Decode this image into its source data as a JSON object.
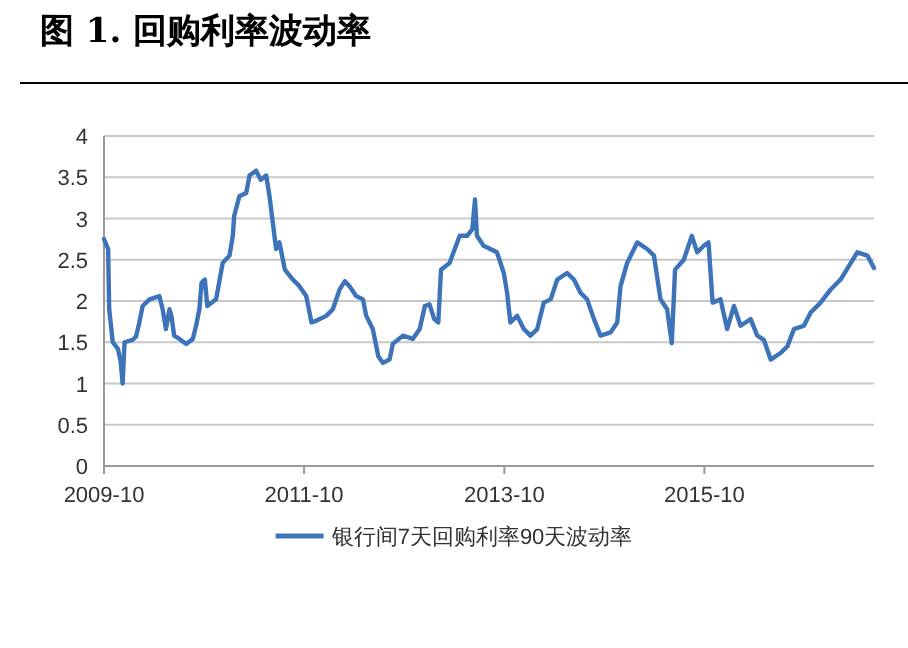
{
  "chart_data": {
    "type": "line",
    "title": "图 1. 回购利率波动率",
    "xlim": [
      "2009-10-01",
      "2017-06-11"
    ],
    "xticks": [
      "2009-10",
      "2011-10",
      "2013-10",
      "2015-10"
    ],
    "ylim": [
      0,
      4
    ],
    "yticks": [
      0,
      0.5,
      1,
      1.5,
      2,
      2.5,
      3,
      3.5,
      4
    ],
    "grid": "y",
    "legend": "bottom",
    "line_style": "solid",
    "marker": "none",
    "x": [
      "2009-10-01",
      "2009-10-16",
      "2009-10-20",
      "2009-11-02",
      "2009-11-21",
      "2009-12-01",
      "2009-12-08",
      "2009-12-15",
      "2010-01-14",
      "2010-01-26",
      "2010-02-07",
      "2010-02-19",
      "2010-03-16",
      "2010-04-21",
      "2010-05-03",
      "2010-05-15",
      "2010-05-28",
      "2010-06-04",
      "2010-06-14",
      "2010-07-03",
      "2010-07-28",
      "2010-08-21",
      "2010-09-02",
      "2010-09-14",
      "2010-09-22",
      "2010-10-04",
      "2010-10-13",
      "2010-11-14",
      "2010-12-08",
      "2011-01-02",
      "2011-01-14",
      "2011-01-19",
      "2011-02-07",
      "2011-03-04",
      "2011-03-16",
      "2011-04-09",
      "2011-04-26",
      "2011-05-16",
      "2011-05-28",
      "2011-06-09",
      "2011-06-21",
      "2011-07-03",
      "2011-07-23",
      "2011-08-21",
      "2011-09-14",
      "2011-10-09",
      "2011-10-28",
      "2011-11-14",
      "2011-12-21",
      "2012-01-14",
      "2012-02-08",
      "2012-02-27",
      "2012-03-15",
      "2012-04-08",
      "2012-05-03",
      "2012-05-15",
      "2012-06-08",
      "2012-06-28",
      "2012-07-15",
      "2012-08-08",
      "2012-08-20",
      "2012-09-26",
      "2012-11-01",
      "2012-11-26",
      "2012-12-15",
      "2013-01-01",
      "2013-01-18",
      "2013-02-02",
      "2013-02-12",
      "2013-03-15",
      "2013-04-21",
      "2013-05-18",
      "2013-06-06",
      "2013-06-16",
      "2013-06-23",
      "2013-07-17",
      "2013-08-11",
      "2013-09-04",
      "2013-09-29",
      "2013-10-11",
      "2013-10-23",
      "2013-11-17",
      "2013-12-11",
      "2014-01-04",
      "2014-01-29",
      "2014-02-22",
      "2014-03-19",
      "2014-04-12",
      "2014-05-18",
      "2014-06-12",
      "2014-07-06",
      "2014-07-30",
      "2014-08-24",
      "2014-09-17",
      "2014-10-24",
      "2014-11-17",
      "2014-11-29",
      "2014-12-23",
      "2015-01-29",
      "2015-03-06",
      "2015-03-31",
      "2015-04-24",
      "2015-05-18",
      "2015-06-04",
      "2015-06-16",
      "2015-07-18",
      "2015-08-16",
      "2015-09-05",
      "2015-09-29",
      "2015-10-16",
      "2015-10-31",
      "2015-11-29",
      "2015-12-23",
      "2016-01-17",
      "2016-02-10",
      "2016-03-18",
      "2016-04-11",
      "2016-05-05",
      "2016-05-30",
      "2016-07-05",
      "2016-07-30",
      "2016-08-23",
      "2016-09-28",
      "2016-10-23",
      "2016-11-28",
      "2017-01-04",
      "2017-02-09",
      "2017-03-18",
      "2017-04-11",
      "2017-05-18",
      "2017-06-11"
    ],
    "series": [
      {
        "name": "银行间7天回购利率90天波动率",
        "color": "#3c73b9",
        "values": [
          2.75,
          2.63,
          1.9,
          1.5,
          1.42,
          1.26,
          1.0,
          1.5,
          1.53,
          1.57,
          1.74,
          1.94,
          2.02,
          2.06,
          1.9,
          1.66,
          1.9,
          1.82,
          1.58,
          1.54,
          1.48,
          1.54,
          1.7,
          1.9,
          2.22,
          2.26,
          1.94,
          2.02,
          2.46,
          2.55,
          2.79,
          3.03,
          3.27,
          3.31,
          3.52,
          3.58,
          3.47,
          3.52,
          3.27,
          2.95,
          2.63,
          2.71,
          2.38,
          2.26,
          2.18,
          2.06,
          1.74,
          1.76,
          1.82,
          1.9,
          2.14,
          2.24,
          2.18,
          2.06,
          2.02,
          1.82,
          1.66,
          1.33,
          1.25,
          1.29,
          1.48,
          1.58,
          1.54,
          1.66,
          1.94,
          1.96,
          1.78,
          1.74,
          2.38,
          2.46,
          2.79,
          2.79,
          2.87,
          3.23,
          2.79,
          2.67,
          2.63,
          2.59,
          2.34,
          2.1,
          1.74,
          1.82,
          1.66,
          1.58,
          1.66,
          1.98,
          2.02,
          2.26,
          2.34,
          2.26,
          2.1,
          2.02,
          1.78,
          1.58,
          1.62,
          1.74,
          2.18,
          2.46,
          2.71,
          2.63,
          2.55,
          2.02,
          1.9,
          1.49,
          2.38,
          2.5,
          2.79,
          2.59,
          2.67,
          2.71,
          1.98,
          2.02,
          1.66,
          1.94,
          1.7,
          1.78,
          1.58,
          1.53,
          1.29,
          1.37,
          1.45,
          1.66,
          1.7,
          1.86,
          1.98,
          2.14,
          2.26,
          2.46,
          2.59,
          2.55,
          2.4
        ]
      }
    ]
  }
}
